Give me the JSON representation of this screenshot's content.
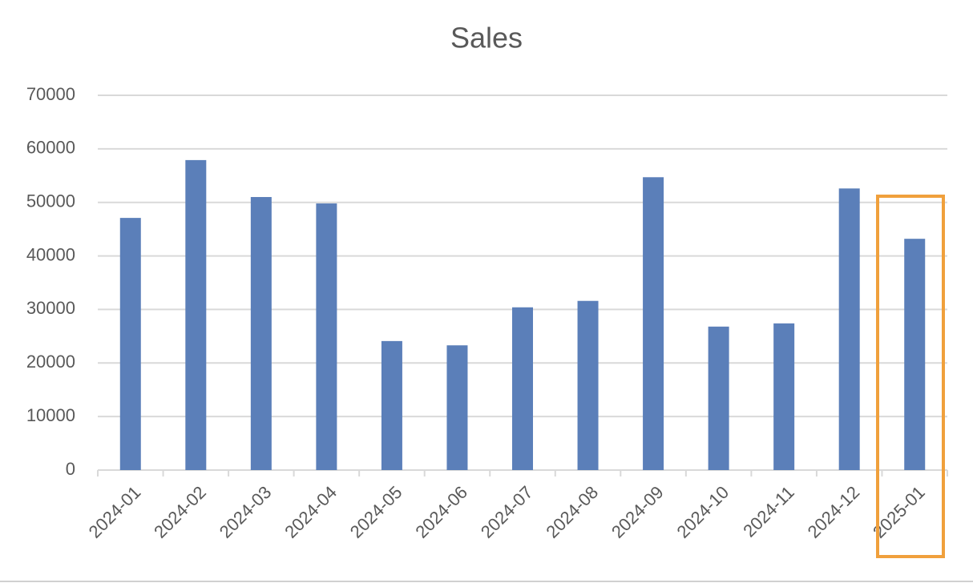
{
  "chart_data": {
    "type": "bar",
    "title": "Sales",
    "categories": [
      "2024-01",
      "2024-02",
      "2024-03",
      "2024-04",
      "2024-05",
      "2024-06",
      "2024-07",
      "2024-08",
      "2024-09",
      "2024-10",
      "2024-11",
      "2024-12",
      "2025-01"
    ],
    "values": [
      47100,
      57900,
      51000,
      49800,
      24100,
      23300,
      30400,
      31600,
      54700,
      26800,
      27400,
      52600,
      43200
    ],
    "color": "#5b7fb9",
    "ylim": [
      0,
      70000
    ],
    "yticks": [
      0,
      10000,
      20000,
      30000,
      40000,
      50000,
      60000,
      70000
    ],
    "grid": true
  }
}
